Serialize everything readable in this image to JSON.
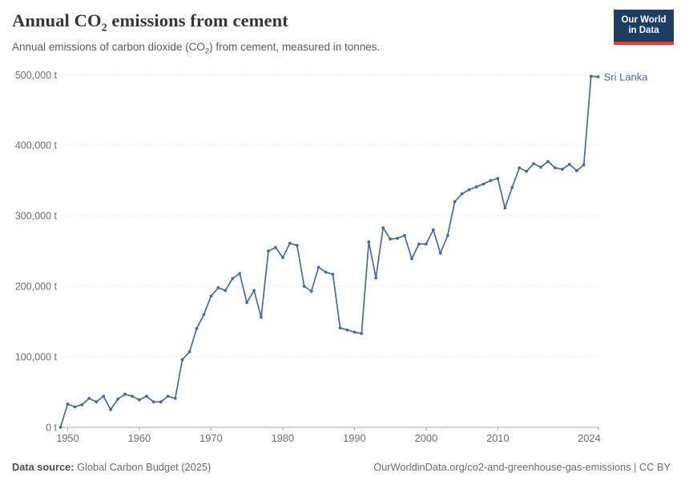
{
  "header": {
    "title_pre": "Annual CO",
    "title_sub": "2",
    "title_post": " emissions from cement",
    "subtitle_pre": "Annual emissions of carbon dioxide (CO",
    "subtitle_sub": "2",
    "subtitle_post": ") from cement, measured in tonnes.",
    "logo": {
      "line1": "Our World",
      "line2": "in Data",
      "navy": "#1d3d63",
      "red": "#e23d33"
    }
  },
  "chart_data": {
    "type": "line",
    "title": "Annual CO2 emissions from cement",
    "entity_label": "Sri Lanka",
    "unit": "t",
    "line_color": "#4C6A9C",
    "grid": true,
    "legend_position": "end-of-line-label",
    "x_range": [
      1949,
      2024
    ],
    "y_range": [
      0,
      500000
    ],
    "x_ticks": [
      1950,
      1960,
      1970,
      1980,
      1990,
      2000,
      2010,
      2024
    ],
    "y_ticks": [
      0,
      100000,
      200000,
      300000,
      400000,
      500000
    ],
    "y_tick_labels": [
      "0 t",
      "100,000 t",
      "200,000 t",
      "300,000 t",
      "400,000 t",
      "500,000 t"
    ],
    "series": [
      {
        "name": "Sri Lanka",
        "x": [
          1949,
          1950,
          1951,
          1952,
          1953,
          1954,
          1955,
          1956,
          1957,
          1958,
          1959,
          1960,
          1961,
          1962,
          1963,
          1964,
          1965,
          1966,
          1967,
          1968,
          1969,
          1970,
          1971,
          1972,
          1973,
          1974,
          1975,
          1976,
          1977,
          1978,
          1979,
          1980,
          1981,
          1982,
          1983,
          1984,
          1985,
          1986,
          1987,
          1988,
          1989,
          1990,
          1991,
          1992,
          1993,
          1994,
          1995,
          1996,
          1997,
          1998,
          1999,
          2000,
          2001,
          2002,
          2003,
          2004,
          2005,
          2006,
          2007,
          2008,
          2009,
          2010,
          2011,
          2012,
          2013,
          2014,
          2015,
          2016,
          2017,
          2018,
          2019,
          2020,
          2021,
          2022,
          2023,
          2024
        ],
        "values": [
          0,
          33000,
          29000,
          32000,
          41000,
          36000,
          44000,
          25000,
          40000,
          47000,
          44000,
          39000,
          44000,
          36000,
          36000,
          44000,
          41000,
          96000,
          107000,
          140000,
          160000,
          186000,
          198000,
          194000,
          211000,
          218000,
          177000,
          194000,
          156000,
          250000,
          255000,
          241000,
          261000,
          258000,
          200000,
          193000,
          227000,
          220000,
          217000,
          141000,
          138000,
          135000,
          133000,
          263000,
          212000,
          283000,
          267000,
          268000,
          272000,
          239000,
          260000,
          260000,
          280000,
          247000,
          272000,
          320000,
          331000,
          337000,
          341000,
          345000,
          350000,
          353000,
          311000,
          340000,
          368000,
          363000,
          374000,
          369000,
          377000,
          368000,
          366000,
          373000,
          364000,
          372000,
          498000,
          497000
        ]
      }
    ],
    "colors": {
      "gridline": "#e3e3e3",
      "axis_line": "#a8a8a8",
      "tick_label": "#6e6e6e",
      "entity_label": "#4C6A9C"
    }
  },
  "footer": {
    "source_label": "Data source:",
    "source_value": " Global Carbon Budget (2025)",
    "credit": "OurWorldinData.org/co2-and-greenhouse-gas-emissions | CC BY"
  }
}
